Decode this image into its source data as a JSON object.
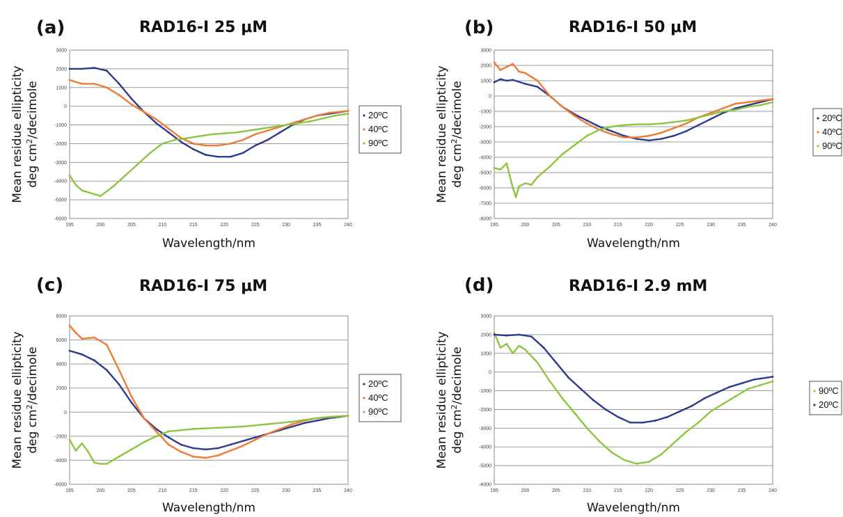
{
  "colors": {
    "20C": "#2d3a8c",
    "40C": "#f07a34",
    "90C": "#8cc63f"
  },
  "chart_data": [
    {
      "type": "line",
      "panel_label": "(a)",
      "title": "RAD16-I 25 μM",
      "xlabel": "Wavelength/nm",
      "ylabel_line1": "Mean residue ellipticity",
      "ylabel_line2_pre": "deg cm",
      "ylabel_sup": "2",
      "ylabel_line2_post": "/decimole",
      "xlim": [
        195,
        240
      ],
      "ylim": [
        -6000,
        3000
      ],
      "xticks": [
        195,
        200,
        205,
        210,
        215,
        220,
        225,
        230,
        235,
        240
      ],
      "yticks": [
        -6000,
        -5000,
        -4000,
        -3000,
        -2000,
        -1000,
        0,
        1000,
        2000,
        3000
      ],
      "grid": true,
      "legend_position": "right",
      "legend": [
        "20ºC",
        "40ºC",
        "90ºC"
      ],
      "series": [
        {
          "name": "20ºC",
          "color_key": "20C",
          "x": [
            195,
            197,
            199,
            201,
            203,
            205,
            207,
            209,
            211,
            213,
            215,
            217,
            219,
            221,
            223,
            225,
            227,
            229,
            231,
            233,
            235,
            237,
            240
          ],
          "y": [
            2000,
            2000,
            2050,
            1900,
            1200,
            400,
            -300,
            -900,
            -1400,
            -1900,
            -2300,
            -2600,
            -2700,
            -2700,
            -2500,
            -2100,
            -1800,
            -1400,
            -1000,
            -700,
            -500,
            -400,
            -250
          ]
        },
        {
          "name": "40ºC",
          "color_key": "40C",
          "x": [
            195,
            197,
            199,
            201,
            203,
            205,
            207,
            209,
            211,
            213,
            215,
            217,
            219,
            221,
            223,
            225,
            227,
            229,
            231,
            233,
            235,
            237,
            240
          ],
          "y": [
            1400,
            1200,
            1200,
            1000,
            600,
            100,
            -300,
            -700,
            -1200,
            -1700,
            -2000,
            -2100,
            -2100,
            -2000,
            -1800,
            -1500,
            -1300,
            -1100,
            -900,
            -700,
            -500,
            -350,
            -250
          ]
        },
        {
          "name": "90ºC",
          "color_key": "90C",
          "x": [
            195,
            196,
            197,
            198,
            199,
            200,
            202,
            204,
            206,
            208,
            210,
            212,
            214,
            216,
            218,
            220,
            222,
            224,
            226,
            228,
            230,
            232,
            234,
            236,
            238,
            240
          ],
          "y": [
            -3700,
            -4200,
            -4500,
            -4600,
            -4700,
            -4800,
            -4300,
            -3700,
            -3100,
            -2500,
            -2000,
            -1800,
            -1700,
            -1600,
            -1500,
            -1450,
            -1400,
            -1300,
            -1200,
            -1100,
            -1000,
            -900,
            -800,
            -650,
            -500,
            -400
          ]
        }
      ]
    },
    {
      "type": "line",
      "panel_label": "(b)",
      "title": "RAD16-I 50 μM",
      "xlabel": "Wavelength/nm",
      "ylabel_line1": "Mean residue ellipticity",
      "ylabel_line2_pre": "deg cm",
      "ylabel_sup": "2",
      "ylabel_line2_post": "/decimole",
      "xlim": [
        195,
        240
      ],
      "ylim": [
        -8000,
        3000
      ],
      "xticks": [
        195,
        200,
        205,
        210,
        215,
        220,
        225,
        230,
        235,
        240
      ],
      "yticks": [
        -8000,
        -7000,
        -6000,
        -5000,
        -4000,
        -3000,
        -2000,
        -1000,
        0,
        1000,
        2000,
        3000
      ],
      "grid": true,
      "legend_position": "right",
      "legend": [
        "20ºC",
        "40ºC",
        "90ºC"
      ],
      "series": [
        {
          "name": "20ºC",
          "color_key": "20C",
          "x": [
            195,
            196,
            197,
            198,
            200,
            202,
            204,
            206,
            208,
            210,
            212,
            214,
            216,
            218,
            220,
            222,
            224,
            226,
            228,
            230,
            232,
            234,
            236,
            238,
            240
          ],
          "y": [
            900,
            1100,
            1000,
            1050,
            800,
            600,
            0,
            -700,
            -1200,
            -1600,
            -2000,
            -2300,
            -2600,
            -2800,
            -2900,
            -2800,
            -2600,
            -2300,
            -1900,
            -1500,
            -1100,
            -800,
            -600,
            -400,
            -200
          ]
        },
        {
          "name": "40ºC",
          "color_key": "40C",
          "x": [
            195,
            196,
            197,
            198,
            199,
            200,
            202,
            204,
            206,
            208,
            210,
            212,
            214,
            216,
            218,
            220,
            222,
            224,
            226,
            228,
            230,
            232,
            234,
            236,
            238,
            240
          ],
          "y": [
            2200,
            1700,
            1900,
            2100,
            1600,
            1500,
            1000,
            0,
            -700,
            -1300,
            -1800,
            -2200,
            -2500,
            -2700,
            -2700,
            -2600,
            -2400,
            -2100,
            -1800,
            -1400,
            -1100,
            -800,
            -500,
            -400,
            -300,
            -200
          ]
        },
        {
          "name": "90ºC",
          "color_key": "90C",
          "x": [
            195,
            196,
            197,
            197.5,
            198,
            198.5,
            199,
            200,
            201,
            202,
            204,
            206,
            208,
            210,
            212,
            214,
            216,
            218,
            220,
            222,
            224,
            226,
            228,
            230,
            232,
            234,
            236,
            238,
            240
          ],
          "y": [
            -4700,
            -4800,
            -4400,
            -5200,
            -6000,
            -6600,
            -5900,
            -5700,
            -5800,
            -5300,
            -4600,
            -3800,
            -3200,
            -2600,
            -2200,
            -2000,
            -1900,
            -1850,
            -1850,
            -1800,
            -1700,
            -1600,
            -1400,
            -1200,
            -1000,
            -900,
            -700,
            -600,
            -400
          ]
        }
      ]
    },
    {
      "type": "line",
      "panel_label": "(c)",
      "title": "RAD16-I 75 μM",
      "xlabel": "Wavelength/nm",
      "ylabel_line1": "Mean residue ellipticity",
      "ylabel_line2_pre": "deg cm",
      "ylabel_sup": "2",
      "ylabel_line2_post": "/decimole",
      "xlim": [
        195,
        240
      ],
      "ylim": [
        -6000,
        8000
      ],
      "xticks": [
        195,
        200,
        205,
        210,
        215,
        220,
        225,
        230,
        235,
        240
      ],
      "yticks": [
        -6000,
        -4000,
        -2000,
        0,
        2000,
        4000,
        6000,
        8000
      ],
      "grid": true,
      "legend_position": "right",
      "legend": [
        "20ºC",
        "40ºC",
        "90ºC"
      ],
      "series": [
        {
          "name": "20ºC",
          "color_key": "20C",
          "x": [
            195,
            197,
            199,
            201,
            203,
            205,
            207,
            209,
            211,
            213,
            215,
            217,
            219,
            221,
            223,
            225,
            227,
            229,
            231,
            233,
            235,
            237,
            240
          ],
          "y": [
            5100,
            4800,
            4300,
            3500,
            2300,
            800,
            -500,
            -1400,
            -2100,
            -2700,
            -3000,
            -3100,
            -3000,
            -2700,
            -2400,
            -2100,
            -1800,
            -1500,
            -1200,
            -900,
            -700,
            -500,
            -300
          ]
        },
        {
          "name": "40ºC",
          "color_key": "40C",
          "x": [
            195,
            196,
            197,
            199,
            201,
            203,
            205,
            207,
            209,
            211,
            213,
            215,
            217,
            219,
            221,
            223,
            225,
            227,
            229,
            231,
            233,
            235,
            237,
            240
          ],
          "y": [
            7200,
            6600,
            6100,
            6200,
            5600,
            3500,
            1300,
            -500,
            -1600,
            -2700,
            -3300,
            -3700,
            -3800,
            -3600,
            -3200,
            -2800,
            -2300,
            -1800,
            -1400,
            -1000,
            -700,
            -500,
            -400,
            -300
          ]
        },
        {
          "name": "90ºC",
          "color_key": "90C",
          "x": [
            195,
            196,
            197,
            198,
            199,
            200,
            201,
            203,
            205,
            207,
            209,
            211,
            213,
            215,
            217,
            219,
            221,
            223,
            225,
            227,
            229,
            231,
            233,
            235,
            237,
            240
          ],
          "y": [
            -2300,
            -3200,
            -2600,
            -3300,
            -4200,
            -4300,
            -4300,
            -3700,
            -3100,
            -2500,
            -2000,
            -1600,
            -1500,
            -1400,
            -1350,
            -1300,
            -1250,
            -1200,
            -1100,
            -1000,
            -900,
            -800,
            -650,
            -500,
            -400,
            -300
          ]
        }
      ]
    },
    {
      "type": "line",
      "panel_label": "(d)",
      "title": "RAD16-I 2.9 mM",
      "xlabel": "Wavelength/nm",
      "ylabel_line1": "Mean residue ellipticity",
      "ylabel_line2_pre": "deg cm",
      "ylabel_sup": "2",
      "ylabel_line2_post": "/decimole",
      "xlim": [
        195,
        240
      ],
      "ylim": [
        -6000,
        3000
      ],
      "xticks": [
        195,
        200,
        205,
        210,
        215,
        220,
        225,
        230,
        235,
        240
      ],
      "yticks": [
        -6000,
        -5000,
        -4000,
        -3000,
        -2000,
        -1000,
        0,
        1000,
        2000,
        3000
      ],
      "grid": true,
      "legend_position": "right",
      "legend": [
        "90ºC",
        "20ºC"
      ],
      "series": [
        {
          "name": "90ºC",
          "color_key": "90C",
          "x": [
            195,
            196,
            197,
            198,
            199,
            200,
            202,
            204,
            206,
            208,
            210,
            212,
            214,
            216,
            218,
            220,
            222,
            224,
            226,
            228,
            230,
            232,
            234,
            236,
            238,
            240
          ],
          "y": [
            2100,
            1300,
            1500,
            1000,
            1400,
            1200,
            500,
            -500,
            -1400,
            -2200,
            -3000,
            -3700,
            -4300,
            -4700,
            -4900,
            -4800,
            -4400,
            -3800,
            -3200,
            -2700,
            -2100,
            -1700,
            -1300,
            -900,
            -700,
            -500
          ]
        },
        {
          "name": "20ºC",
          "color_key": "20C",
          "x": [
            195,
            197,
            199,
            201,
            203,
            205,
            207,
            209,
            211,
            213,
            215,
            217,
            219,
            221,
            223,
            225,
            227,
            229,
            231,
            233,
            235,
            237,
            240
          ],
          "y": [
            2000,
            1950,
            2000,
            1900,
            1300,
            500,
            -300,
            -900,
            -1500,
            -2000,
            -2400,
            -2700,
            -2700,
            -2600,
            -2400,
            -2100,
            -1800,
            -1400,
            -1100,
            -800,
            -600,
            -400,
            -250
          ]
        }
      ]
    }
  ]
}
